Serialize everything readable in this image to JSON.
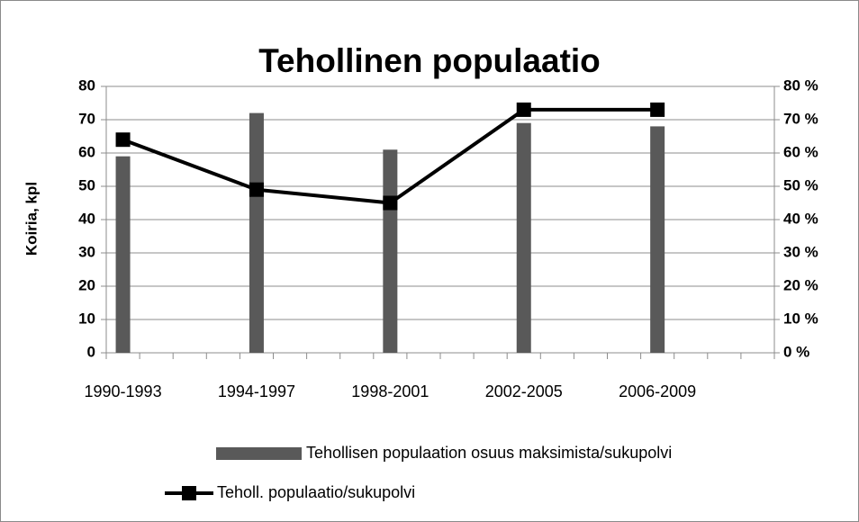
{
  "chart_data": {
    "type": "bar_line",
    "title": "Tehollinen populaatio",
    "y_label": "Koiria, kpl",
    "categories": [
      "1990-1993",
      "1994-1997",
      "1998-2001",
      "2002-2005",
      "2006-2009"
    ],
    "series": [
      {
        "name": "Tehollisen populaation osuus maksimista/sukupolvi",
        "type": "bar",
        "color": "#595959",
        "axis": "y2",
        "values": [
          59,
          72,
          61,
          69,
          68
        ]
      },
      {
        "name": "Teholl. populaatio/sukupolvi",
        "type": "line",
        "color": "#000000",
        "axis": "y",
        "values": [
          64,
          49,
          45,
          73,
          73
        ]
      }
    ],
    "ylim": [
      0,
      80
    ],
    "yticks": [
      0,
      10,
      20,
      30,
      40,
      50,
      60,
      70,
      80
    ],
    "y2lim": [
      0,
      80
    ],
    "y2ticks": [
      {
        "value": 0,
        "label": "0 %"
      },
      {
        "value": 10,
        "label": "10 %"
      },
      {
        "value": 20,
        "label": "20 %"
      },
      {
        "value": 30,
        "label": "30 %"
      },
      {
        "value": 40,
        "label": "40 %"
      },
      {
        "value": 50,
        "label": "50 %"
      },
      {
        "value": 60,
        "label": "60 %"
      },
      {
        "value": 70,
        "label": "70 %"
      },
      {
        "value": 80,
        "label": "80 %"
      }
    ],
    "grid": true,
    "legend": "bottom"
  }
}
